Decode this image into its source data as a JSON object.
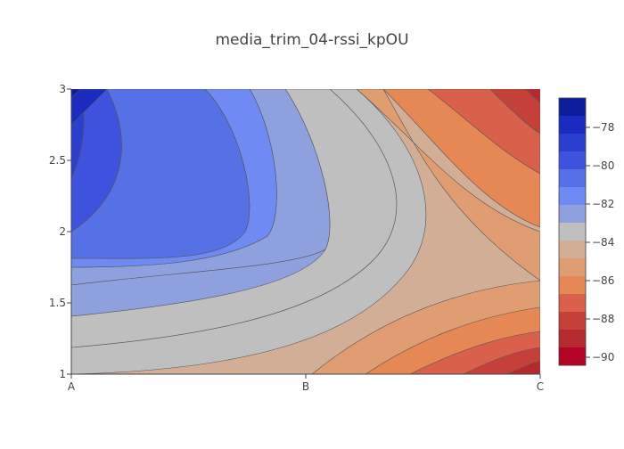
{
  "chart_data": {
    "type": "contour",
    "title": "media_trim_04-rssi_kpOU",
    "x_categories": [
      "A",
      "B",
      "C"
    ],
    "y_ticks": [
      "1",
      "1.5",
      "2",
      "2.5",
      "3"
    ],
    "y_range": [
      1,
      3
    ],
    "z_grid": {
      "note_rows_are_y_1_2_3_cols_are_x_A_B_C": "",
      "y": [
        1,
        2,
        3
      ],
      "z": [
        [
          -85,
          -87,
          -90
        ],
        [
          -81,
          -84,
          -87
        ],
        [
          -78,
          -82,
          -89
        ]
      ]
    },
    "colorbar": {
      "ticks": [
        "−78",
        "−80",
        "−82",
        "−84",
        "−86",
        "−88",
        "−90"
      ],
      "levels": [
        -77.5,
        -78,
        -78.5,
        -79,
        -79.5,
        -80,
        -80.5,
        -81,
        -81.5,
        -82,
        -82.5,
        -83,
        -83.5,
        -84,
        -84.5,
        -85,
        -85.5,
        -86,
        -86.5,
        -87,
        -87.5,
        -88,
        -88.5,
        -89,
        -89.5,
        -90,
        -90.5
      ],
      "colors": [
        "#0b1c9c",
        "#1b2bc0",
        "#2b3fcf",
        "#3f52dd",
        "#5670e6",
        "#6f8af2",
        "#8fa0df",
        "#bfbfbf",
        "#d2ae97",
        "#e09d72",
        "#e68855",
        "#d9604a",
        "#c6403a",
        "#b52a2e",
        "#b40426"
      ]
    }
  }
}
